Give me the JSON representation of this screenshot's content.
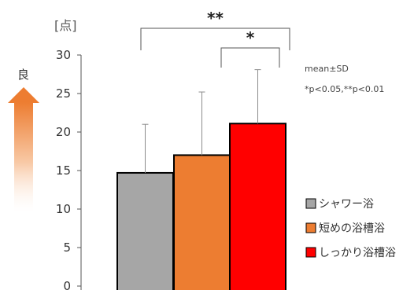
{
  "chart_data": {
    "type": "bar",
    "title": "",
    "xlabel": "",
    "ylabel": "",
    "y_unit_label": "[点]",
    "better_direction_label": "良",
    "ylim": [
      0,
      30
    ],
    "y_ticks": [
      "0",
      "5",
      "10",
      "15",
      "20",
      "25",
      "30"
    ],
    "categories": [
      "シャワー浴",
      "短めの浴槽浴",
      "しっかり浴槽浴"
    ],
    "values": [
      14.7,
      17.0,
      21.1
    ],
    "sd_upper": [
      21.0,
      25.2,
      28.1
    ],
    "colors": [
      "#a6a6a6",
      "#ed7d31",
      "#ff0000"
    ],
    "legend": {
      "placement": "right",
      "entries": [
        "シャワー浴",
        "短めの浴槽浴",
        "しっかり浴槽浴"
      ]
    },
    "stat_note_1": "mean±SD",
    "stat_note_2": "*p<0.05,**p<0.01",
    "significance": [
      {
        "from": 0,
        "to": 2,
        "label": "**"
      },
      {
        "from": 1,
        "to": 2,
        "label": "*"
      }
    ],
    "grid": false
  }
}
